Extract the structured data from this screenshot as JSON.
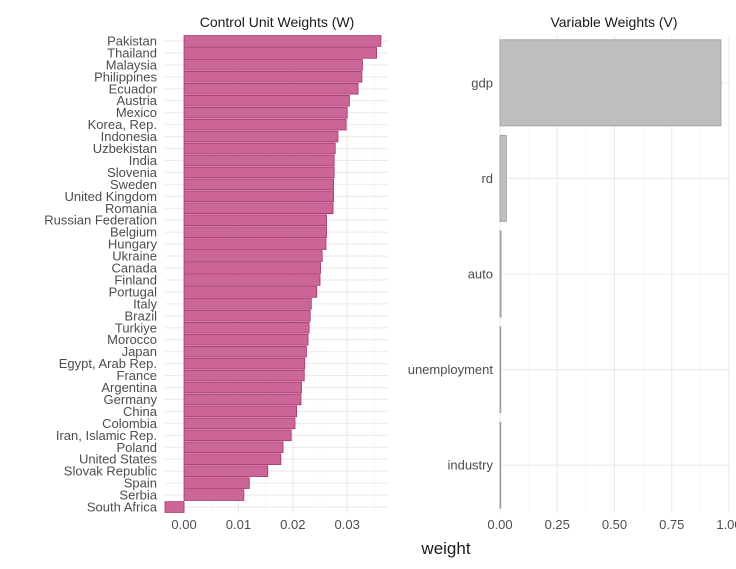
{
  "chart_data": [
    {
      "type": "bar",
      "orientation": "horizontal",
      "title": "Control Unit Weights (W)",
      "xlabel": "weight",
      "xlim": [
        -0.0035,
        0.0375
      ],
      "xticks": [
        0.0,
        0.01,
        0.02,
        0.03
      ],
      "xtick_labels": [
        "0.00",
        "0.01",
        "0.02",
        "0.03"
      ],
      "grid": true,
      "bar_color": "#cc6699",
      "bar_edge_color": "#a8326e",
      "categories": [
        "Pakistan",
        "Thailand",
        "Malaysia",
        "Philippines",
        "Ecuador",
        "Austria",
        "Mexico",
        "Korea, Rep.",
        "Indonesia",
        "Uzbekistan",
        "India",
        "Slovenia",
        "Sweden",
        "United Kingdom",
        "Romania",
        "Russian Federation",
        "Belgium",
        "Hungary",
        "Ukraine",
        "Canada",
        "Finland",
        "Portugal",
        "Italy",
        "Brazil",
        "Turkiye",
        "Morocco",
        "Japan",
        "Egypt, Arab Rep.",
        "France",
        "Argentina",
        "Germany",
        "China",
        "Colombia",
        "Iran, Islamic Rep.",
        "Poland",
        "United States",
        "Slovak Republic",
        "Spain",
        "Serbia",
        "South Africa"
      ],
      "values": [
        0.0362,
        0.0354,
        0.0328,
        0.0327,
        0.032,
        0.0304,
        0.03,
        0.0298,
        0.0283,
        0.0278,
        0.0276,
        0.0276,
        0.0275,
        0.0275,
        0.0274,
        0.0262,
        0.0262,
        0.0261,
        0.0254,
        0.0251,
        0.025,
        0.0244,
        0.0234,
        0.0232,
        0.023,
        0.0228,
        0.0225,
        0.0222,
        0.0221,
        0.0216,
        0.0215,
        0.0207,
        0.0204,
        0.0197,
        0.0182,
        0.0178,
        0.0154,
        0.012,
        0.011,
        -0.0035
      ]
    },
    {
      "type": "bar",
      "orientation": "horizontal",
      "title": "Variable Weights (V)",
      "xlabel": "weight",
      "xlim": [
        0,
        1
      ],
      "xticks": [
        0,
        0.25,
        0.5,
        0.75,
        1.0
      ],
      "xtick_labels": [
        "0.00",
        "0.25",
        "0.50",
        "0.75",
        "1.00"
      ],
      "grid": true,
      "bar_color": "#bebebe",
      "bar_edge_color": "#9a9a9a",
      "categories": [
        "gdp",
        "rd",
        "auto",
        "unemployment",
        "industry"
      ],
      "values": [
        0.965,
        0.028,
        0.005,
        0.001,
        0.001
      ]
    }
  ],
  "shared_xlabel": "weight"
}
